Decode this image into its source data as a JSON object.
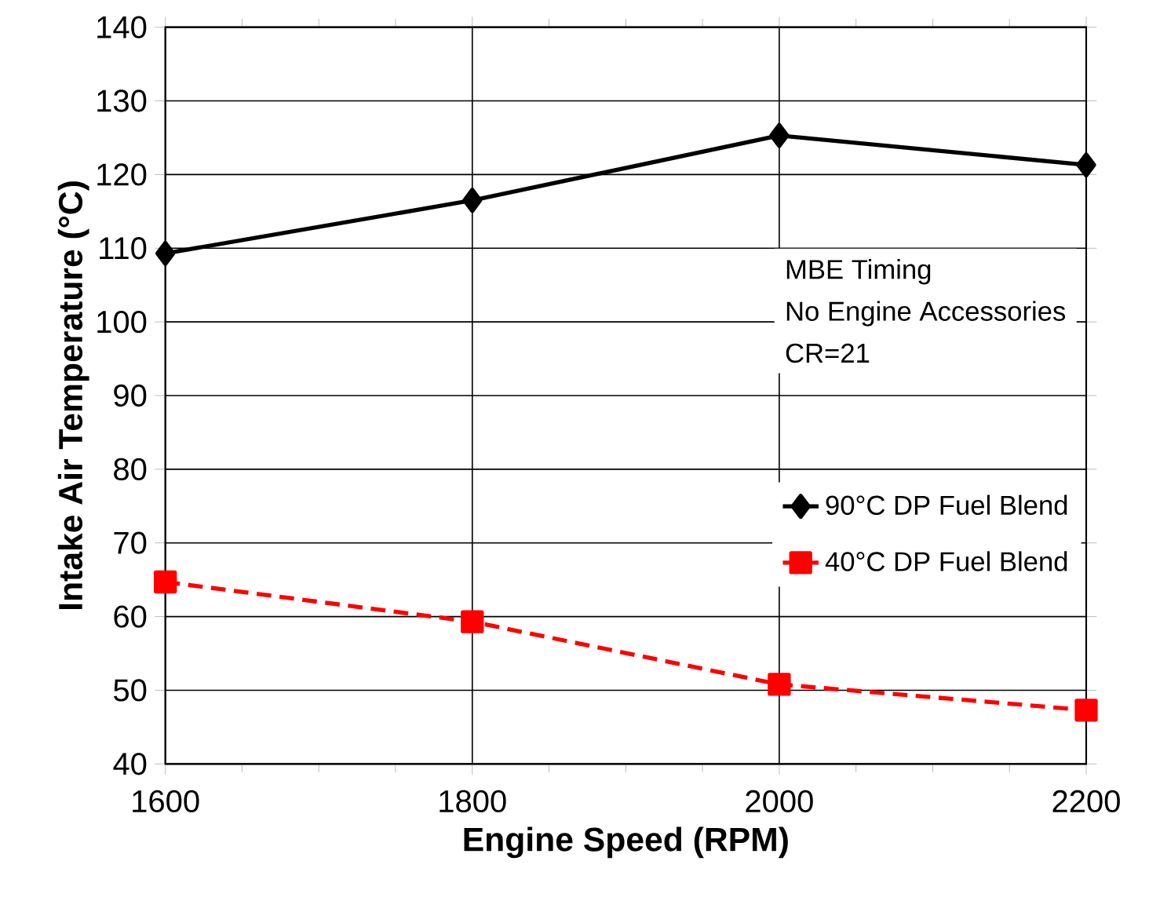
{
  "chart_data": {
    "type": "line",
    "xlabel": "Engine Speed (RPM)",
    "ylabel": "Intake  Air Temperature (°C)",
    "x": [
      1600,
      1800,
      2000,
      2200
    ],
    "series": [
      {
        "name": "90°C DP Fuel Blend",
        "color": "#000000",
        "values": [
          109.3,
          116.5,
          125.3,
          121.3
        ],
        "marker": "diamond",
        "line_style": "solid"
      },
      {
        "name": "40°C DP Fuel Blend",
        "color": "#ff0000",
        "values": [
          64.7,
          59.3,
          50.8,
          47.3
        ],
        "marker": "square",
        "line_style": "dashed"
      }
    ],
    "annotations": [
      "MBE Timing",
      "No Engine Accessories",
      "CR=21"
    ],
    "xlim": [
      1600,
      2200
    ],
    "xticks": [
      1600,
      1800,
      2000,
      2200
    ],
    "ylim": [
      40,
      140
    ],
    "yticks": [
      40,
      50,
      60,
      70,
      80,
      90,
      100,
      110,
      120,
      130,
      140
    ],
    "grid": true,
    "legend": "right"
  }
}
